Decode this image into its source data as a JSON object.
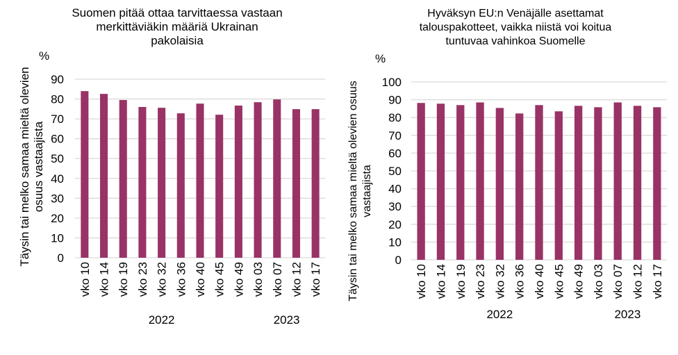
{
  "colors": {
    "bar": "#993366",
    "grid": "#d9d9d9"
  },
  "chart_data": [
    {
      "type": "bar",
      "title": [
        "Suomen pitää ottaa tarvittaessa vastaan",
        "merkittäviäkin määriä Ukrainan",
        "pakolaisia"
      ],
      "unit": "%",
      "ylabel": [
        "Täysin tai melko samaa mieltä olevien",
        "osuus vastaajista"
      ],
      "ylim": [
        0,
        90
      ],
      "yticks": [
        0,
        10,
        20,
        30,
        40,
        50,
        60,
        70,
        80,
        90
      ],
      "grid": true,
      "categories": [
        "vko 10",
        "vko 14",
        "vko 19",
        "vko 23",
        "vko 32",
        "vko 36",
        "vko 40",
        "vko 45",
        "vko 49",
        "vko 03",
        "vko 07",
        "vko 12",
        "vko 17"
      ],
      "groups": [
        {
          "label": "2022",
          "from": 0,
          "to": 8
        },
        {
          "label": "2023",
          "from": 9,
          "to": 12
        }
      ],
      "values": [
        84.0,
        82.6,
        79.5,
        76.0,
        75.6,
        72.8,
        77.7,
        72.1,
        76.7,
        78.4,
        79.8,
        74.9,
        74.9
      ]
    },
    {
      "type": "bar",
      "title": [
        "Hyväksyn EU:n Venäjälle asettamat",
        "talouspakotteet, vaikka niistä voi koitua",
        "tuntuvaa vahinkoa Suomelle"
      ],
      "unit": "%",
      "ylabel": [
        "Täysin tai melko samaa mieltä olevien osuus",
        "vastaajista"
      ],
      "ylim": [
        0,
        100
      ],
      "yticks": [
        0,
        10,
        20,
        30,
        40,
        50,
        60,
        70,
        80,
        90,
        100
      ],
      "grid": true,
      "categories": [
        "vko 10",
        "vko 14",
        "vko 19",
        "vko 23",
        "vko 32",
        "vko 36",
        "vko 40",
        "vko 45",
        "vko 49",
        "vko 03",
        "vko 07",
        "vko 12",
        "vko 17"
      ],
      "groups": [
        {
          "label": "2022",
          "from": 0,
          "to": 8
        },
        {
          "label": "2023",
          "from": 9,
          "to": 12
        }
      ],
      "values": [
        88.2,
        87.8,
        87.0,
        88.5,
        85.4,
        82.3,
        87.0,
        83.5,
        86.6,
        85.8,
        88.5,
        86.6,
        85.8
      ]
    }
  ]
}
